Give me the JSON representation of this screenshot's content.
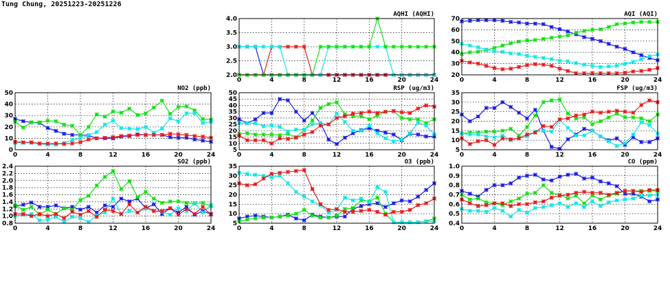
{
  "title": "Tung Chung, 20251223-20251226",
  "colors": {
    "blue": "#1a1ae6",
    "green": "#10e010",
    "cyan": "#10e5e5",
    "red": "#e61a1a"
  },
  "chart_data": [
    {
      "id": "aqhi",
      "type": "line",
      "title": "AQHI (AQHI)",
      "xlim": [
        0,
        24
      ],
      "xticks": [
        0,
        4,
        8,
        12,
        16,
        20,
        24
      ],
      "ylim": [
        2,
        4
      ],
      "yticks": [
        "2.0",
        "2.5",
        "3.0",
        "3.5",
        "4.0"
      ],
      "grid": true,
      "series": [
        {
          "name": "blue",
          "values": [
            3,
            3,
            3,
            2,
            2,
            2,
            2,
            2,
            2,
            2,
            2,
            2,
            2,
            2,
            2,
            2,
            2,
            2,
            2,
            2,
            2,
            2,
            2,
            2,
            2
          ]
        },
        {
          "name": "red",
          "values": [
            2,
            2,
            2,
            2,
            3,
            3,
            3,
            3,
            3,
            2,
            2,
            2,
            2,
            2,
            2,
            2,
            2,
            2,
            2,
            2,
            2,
            2,
            2,
            2,
            2
          ]
        },
        {
          "name": "cyan",
          "values": [
            3,
            3,
            3,
            3,
            3,
            3,
            2,
            2,
            2,
            2,
            2,
            3,
            3,
            3,
            3,
            3,
            3,
            3,
            3,
            2,
            2,
            2,
            2,
            2,
            2
          ]
        },
        {
          "name": "green",
          "values": [
            2,
            2,
            2,
            2,
            2,
            2,
            2,
            2,
            2,
            2,
            3,
            3,
            3,
            3,
            3,
            3,
            3,
            4,
            3,
            3,
            3,
            3,
            3,
            3,
            3
          ]
        }
      ]
    },
    {
      "id": "aqi",
      "type": "line",
      "title": "AQI (AQI)",
      "xlim": [
        0,
        24
      ],
      "xticks": [
        0,
        4,
        8,
        12,
        16,
        20,
        24
      ],
      "ylim": [
        20,
        70
      ],
      "yticks": [
        "20",
        "30",
        "40",
        "50",
        "60",
        "70"
      ],
      "grid": true,
      "series": [
        {
          "name": "blue",
          "values": [
            67.5,
            68,
            68.5,
            68.5,
            68.5,
            68,
            67,
            66.5,
            65.5,
            65.5,
            65,
            62.5,
            60.5,
            58.5,
            56,
            53.5,
            52,
            50,
            47.5,
            45,
            43,
            40,
            37.5,
            35,
            33
          ]
        },
        {
          "name": "green",
          "values": [
            38.5,
            40,
            40.5,
            42,
            44,
            46,
            48,
            49.5,
            50.5,
            51,
            52,
            53,
            54,
            55,
            57.5,
            59,
            60,
            60.5,
            62.5,
            65,
            65.5,
            66.5,
            67,
            67,
            67
          ]
        },
        {
          "name": "cyan",
          "values": [
            47.5,
            46,
            44.5,
            42.5,
            41,
            40.5,
            39,
            38.5,
            37,
            36,
            35,
            34,
            32.5,
            32,
            30.5,
            29,
            28,
            27,
            27.5,
            28,
            30,
            31.5,
            34,
            36.5,
            38
          ]
        },
        {
          "name": "red",
          "values": [
            32.5,
            31,
            30,
            28,
            26,
            25,
            25.5,
            27,
            28.5,
            29.5,
            29,
            28,
            25.5,
            23.5,
            21.5,
            21.5,
            21.5,
            21.5,
            21.5,
            21.5,
            22,
            23,
            23.5,
            24.5,
            26
          ]
        }
      ]
    },
    {
      "id": "no2",
      "type": "line",
      "title": "NO2 (ppb)",
      "xlim": [
        0,
        24
      ],
      "xticks": [
        0,
        4,
        8,
        12,
        16,
        20,
        24
      ],
      "ylim": [
        0,
        50
      ],
      "yticks": [
        "0",
        "10",
        "20",
        "30",
        "40",
        "50"
      ],
      "grid": true,
      "series": [
        {
          "name": "blue",
          "values": [
            27,
            25,
            24,
            23.5,
            19,
            16.5,
            14,
            13,
            13,
            12.5,
            10,
            10,
            10,
            11.5,
            12,
            13.5,
            13,
            13,
            13,
            11,
            10.5,
            10.5,
            9,
            8,
            7
          ]
        },
        {
          "name": "green",
          "values": [
            24.5,
            19.5,
            24,
            24,
            25.5,
            25,
            22,
            21,
            13,
            20,
            31,
            29,
            33.5,
            32.5,
            36,
            30.5,
            32,
            37,
            43,
            31.5,
            37.5,
            38,
            34.5,
            27,
            26.5
          ]
        },
        {
          "name": "cyan",
          "values": [
            6,
            6,
            6,
            5,
            4.5,
            4.5,
            6,
            8.5,
            10,
            13,
            15.5,
            22,
            25.5,
            19,
            18.5,
            18,
            20,
            15,
            18.5,
            27.5,
            25,
            32,
            32,
            23.5,
            24.5
          ]
        },
        {
          "name": "red",
          "values": [
            7,
            6.5,
            6.5,
            5.5,
            5.5,
            5.5,
            5,
            5.5,
            6.5,
            9,
            10,
            10.5,
            11,
            12,
            12.5,
            13,
            13,
            13,
            13,
            14,
            13.5,
            13,
            12,
            11.5,
            10.5
          ]
        }
      ]
    },
    {
      "id": "rsp",
      "type": "line",
      "title": "RSP (ug/m3)",
      "xlim": [
        0,
        24
      ],
      "xticks": [
        0,
        4,
        8,
        12,
        16,
        20,
        24
      ],
      "ylim": [
        5,
        50
      ],
      "yticks": [
        "5",
        "10",
        "15",
        "20",
        "25",
        "30",
        "35",
        "40",
        "45",
        "50"
      ],
      "grid": true,
      "series": [
        {
          "name": "blue",
          "values": [
            29,
            26,
            29,
            34,
            34,
            45,
            44,
            35,
            28,
            34,
            26,
            13,
            9.5,
            14.5,
            18,
            20.5,
            22,
            20,
            18.5,
            17,
            12.5,
            17.5,
            17,
            15.5,
            15.5
          ]
        },
        {
          "name": "green",
          "values": [
            17.5,
            18,
            17,
            17,
            17,
            16.5,
            17.5,
            15,
            20.5,
            28,
            38,
            41,
            42.5,
            33,
            31.5,
            31.5,
            29,
            32,
            35,
            35.5,
            30,
            29,
            29,
            26,
            29
          ]
        },
        {
          "name": "cyan",
          "values": [
            26,
            26,
            26,
            23.5,
            24,
            23,
            19.5,
            21,
            21,
            25,
            26,
            25,
            33.5,
            27,
            20,
            20,
            24,
            18,
            14,
            11.5,
            13,
            18,
            26.5,
            24,
            17
          ]
        },
        {
          "name": "red",
          "values": [
            16,
            12.5,
            12.5,
            12.5,
            10,
            14,
            13.5,
            14.5,
            17,
            19,
            24,
            25,
            30,
            31.5,
            33.5,
            34,
            35,
            34,
            35,
            35.5,
            34.5,
            34,
            37.5,
            40,
            39
          ]
        }
      ]
    },
    {
      "id": "fsp",
      "type": "line",
      "title": "FSP (ug/m3)",
      "xlim": [
        0,
        24
      ],
      "xticks": [
        0,
        4,
        8,
        12,
        16,
        20,
        24
      ],
      "ylim": [
        5,
        35
      ],
      "yticks": [
        "5",
        "10",
        "15",
        "20",
        "25",
        "30",
        "35"
      ],
      "grid": true,
      "series": [
        {
          "name": "blue",
          "values": [
            23.5,
            20,
            22.5,
            27,
            27,
            30,
            27.5,
            24.5,
            21.5,
            26,
            15,
            6.5,
            5.5,
            10.5,
            13,
            16,
            15,
            12,
            10,
            11,
            7.5,
            11.5,
            9,
            9,
            11
          ]
        },
        {
          "name": "green",
          "values": [
            13.5,
            14,
            14,
            14.5,
            14.5,
            15,
            16,
            12.5,
            17,
            23,
            30,
            31,
            31.5,
            24,
            21.5,
            22,
            18.5,
            20,
            22,
            24,
            22,
            22,
            21.5,
            20,
            23.5
          ]
        },
        {
          "name": "cyan",
          "values": [
            13.5,
            13,
            13,
            12,
            11.5,
            12.5,
            10,
            11,
            12,
            14.5,
            15,
            14.5,
            20.5,
            16.5,
            12.5,
            12.5,
            15,
            12,
            9.5,
            7,
            8.5,
            13,
            19.5,
            18,
            13.5
          ]
        },
        {
          "name": "red",
          "values": [
            11,
            8,
            9.5,
            10,
            7.5,
            11,
            10.5,
            11,
            13,
            14,
            17.5,
            17,
            21,
            21.5,
            23,
            23.5,
            25,
            24.5,
            25,
            25.5,
            25,
            24.5,
            28.5,
            31,
            30
          ]
        }
      ]
    },
    {
      "id": "so2",
      "type": "line",
      "title": "SO2 (ppb)",
      "xlim": [
        0,
        24
      ],
      "xticks": [
        0,
        4,
        8,
        12,
        16,
        20,
        24
      ],
      "ylim": [
        0.8,
        2.4
      ],
      "yticks": [
        "0.8",
        "1.0",
        "1.2",
        "1.4",
        "1.6",
        "1.8",
        "2.0",
        "2.2",
        "2.4"
      ],
      "grid": true,
      "series": [
        {
          "name": "blue",
          "values": [
            1.28,
            1.32,
            1.38,
            1.26,
            1.26,
            1.3,
            1.22,
            1.26,
            1.18,
            1.26,
            1.1,
            1.3,
            1.26,
            1.49,
            1.41,
            1.49,
            1.22,
            1.33,
            1.06,
            1.22,
            1.1,
            1.26,
            1.04,
            1.14,
            1.06
          ]
        },
        {
          "name": "green",
          "values": [
            1.3,
            1.18,
            1.26,
            1.04,
            1.18,
            1.06,
            1.22,
            1.18,
            1.45,
            1.57,
            1.86,
            2.1,
            2.26,
            1.76,
            1.98,
            1.53,
            1.68,
            1.49,
            1.37,
            1.41,
            1.41,
            1.37,
            1.35,
            1.37,
            1.28
          ]
        },
        {
          "name": "cyan",
          "values": [
            1.0,
            1.04,
            1.06,
            0.88,
            0.9,
            0.98,
            0.84,
            0.98,
            0.94,
            0.84,
            1.02,
            1.1,
            1.49,
            1.06,
            1.14,
            1.1,
            1.22,
            1.14,
            1.12,
            1.04,
            1.22,
            1.14,
            1.37,
            1.1,
            1.32
          ]
        },
        {
          "name": "red",
          "values": [
            1.06,
            1.06,
            1.0,
            1.06,
            1.0,
            1.06,
            0.94,
            1.12,
            1.04,
            1.14,
            0.98,
            1.18,
            1.14,
            1.06,
            1.33,
            1.1,
            1.26,
            1.14,
            1.14,
            1.22,
            1.04,
            1.2,
            1.06,
            1.26,
            1.04
          ]
        }
      ]
    },
    {
      "id": "o3",
      "type": "line",
      "title": "O3 (ppb)",
      "xlim": [
        0,
        24
      ],
      "xticks": [
        0,
        4,
        8,
        12,
        16,
        20,
        24
      ],
      "ylim": [
        5,
        35
      ],
      "yticks": [
        "5",
        "10",
        "15",
        "20",
        "25",
        "30",
        "35"
      ],
      "grid": true,
      "series": [
        {
          "name": "blue",
          "values": [
            7.5,
            8.5,
            9,
            8.5,
            8,
            8.5,
            9.5,
            7.5,
            6.5,
            9.5,
            8.5,
            8,
            8.5,
            8.5,
            12.5,
            14,
            15,
            15.5,
            13.5,
            15.5,
            17,
            16.5,
            19,
            22.5,
            26
          ]
        },
        {
          "name": "green",
          "values": [
            6,
            7,
            7.5,
            8,
            8,
            8.5,
            9,
            10,
            12,
            9,
            8,
            8,
            9,
            12.5,
            13,
            17,
            16.5,
            18.5,
            10,
            5.5,
            5.5,
            5.5,
            5.5,
            6,
            7.5
          ]
        },
        {
          "name": "cyan",
          "values": [
            31.5,
            31,
            30.5,
            30,
            29,
            30,
            26,
            21.5,
            19,
            16.5,
            14.5,
            10.5,
            12,
            18.5,
            17,
            18,
            16,
            24,
            21.5,
            5.5,
            5.5,
            5.5,
            5.5,
            6,
            6
          ]
        },
        {
          "name": "red",
          "values": [
            26,
            25,
            25.5,
            28.5,
            31,
            31.5,
            32,
            32.5,
            33,
            23,
            15,
            12,
            12.5,
            11,
            11,
            11.5,
            12,
            11,
            9.5,
            11,
            11,
            12,
            14.5,
            15.5,
            18
          ]
        }
      ]
    },
    {
      "id": "co",
      "type": "line",
      "title": "CO (ppm)",
      "xlim": [
        0,
        24
      ],
      "xticks": [
        0,
        4,
        8,
        12,
        16,
        20,
        24
      ],
      "ylim": [
        0.4,
        1.0
      ],
      "yticks": [
        "0.4",
        "0.5",
        "0.6",
        "0.7",
        "0.8",
        "0.9",
        "1.0"
      ],
      "grid": true,
      "series": [
        {
          "name": "blue",
          "values": [
            0.74,
            0.71,
            0.68,
            0.75,
            0.8,
            0.8,
            0.82,
            0.88,
            0.9,
            0.91,
            0.86,
            0.85,
            0.89,
            0.91,
            0.92,
            0.87,
            0.88,
            0.84,
            0.82,
            0.79,
            0.71,
            0.71,
            0.68,
            0.63,
            0.65
          ]
        },
        {
          "name": "green",
          "values": [
            0.7,
            0.65,
            0.66,
            0.62,
            0.61,
            0.59,
            0.63,
            0.66,
            0.71,
            0.72,
            0.8,
            0.72,
            0.7,
            0.66,
            0.69,
            0.61,
            0.69,
            0.65,
            0.69,
            0.71,
            0.74,
            0.74,
            0.74,
            0.74,
            0.74
          ]
        },
        {
          "name": "cyan",
          "values": [
            0.55,
            0.53,
            0.53,
            0.52,
            0.56,
            0.53,
            0.47,
            0.54,
            0.51,
            0.56,
            0.57,
            0.59,
            0.61,
            0.57,
            0.61,
            0.57,
            0.63,
            0.58,
            0.62,
            0.64,
            0.65,
            0.66,
            0.69,
            0.69,
            0.7
          ]
        },
        {
          "name": "red",
          "values": [
            0.65,
            0.61,
            0.58,
            0.59,
            0.61,
            0.61,
            0.58,
            0.6,
            0.6,
            0.62,
            0.63,
            0.67,
            0.69,
            0.7,
            0.72,
            0.73,
            0.72,
            0.72,
            0.7,
            0.72,
            0.74,
            0.74,
            0.73,
            0.75,
            0.75
          ]
        }
      ]
    }
  ]
}
